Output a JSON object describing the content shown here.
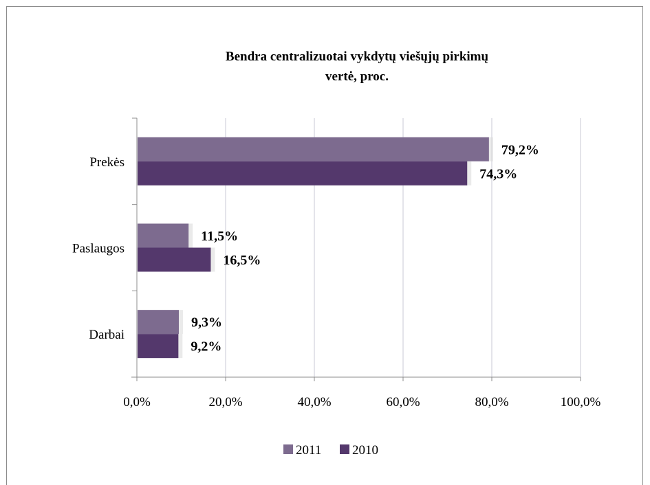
{
  "chart_data": {
    "type": "bar",
    "orientation": "horizontal",
    "title_lines": [
      "Bendra centralizuotai vykdytų viešųjų pirkimų",
      "vertė, proc."
    ],
    "categories": [
      "Prekės",
      "Paslaugos",
      "Darbai"
    ],
    "series": [
      {
        "name": "2011",
        "values": [
          79.2,
          11.5,
          9.3
        ],
        "labels": [
          "79,2%",
          "11,5%",
          "9,3%"
        ],
        "color": "#7d6b8f"
      },
      {
        "name": "2010",
        "values": [
          74.3,
          16.5,
          9.2
        ],
        "labels": [
          "74,3%",
          "16,5%",
          "9,2%"
        ],
        "color": "#54386c"
      }
    ],
    "xlim": [
      0,
      100
    ],
    "xticks": [
      0,
      20,
      40,
      60,
      80,
      100
    ],
    "xtick_labels": [
      "0,0%",
      "20,0%",
      "40,0%",
      "60,0%",
      "80,0%",
      "100,0%"
    ],
    "grid": true,
    "legend_position": "bottom"
  }
}
